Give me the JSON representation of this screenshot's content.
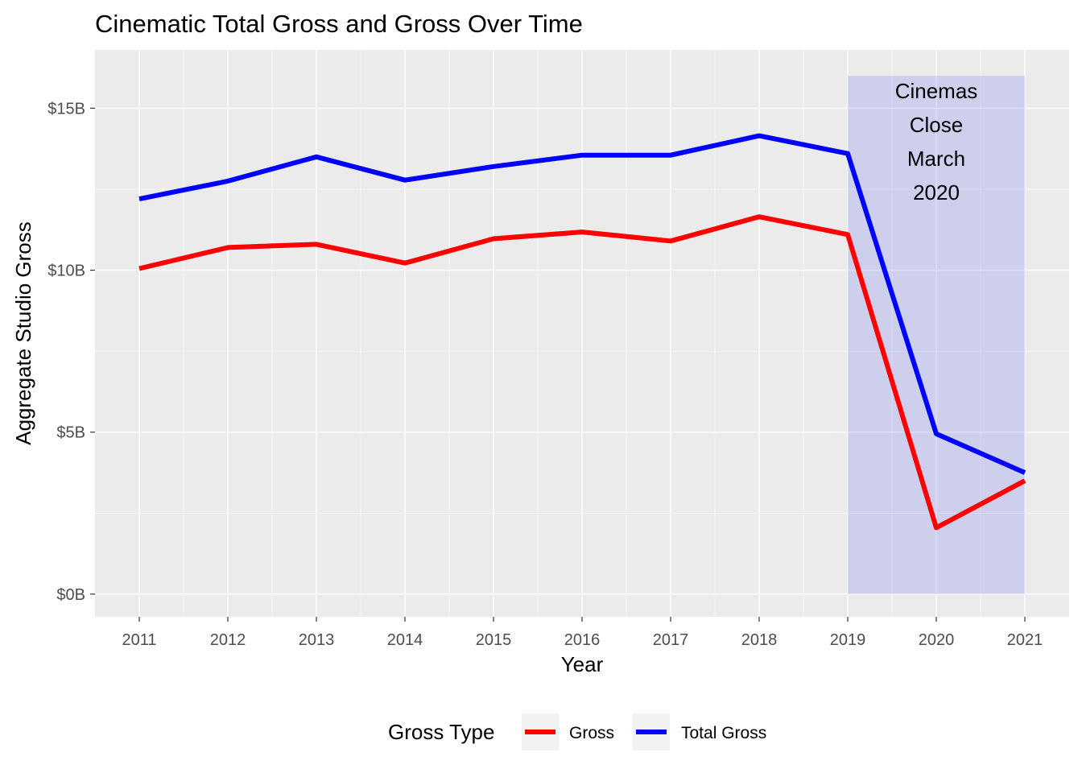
{
  "chart_data": {
    "type": "line",
    "title": "Cinematic Total Gross and Gross Over Time",
    "xlabel": "Year",
    "ylabel": "Aggregate Studio Gross",
    "x": [
      2011,
      2012,
      2013,
      2014,
      2015,
      2016,
      2017,
      2018,
      2019,
      2020,
      2021
    ],
    "x_ticks": [
      "2011",
      "2012",
      "2013",
      "2014",
      "2015",
      "2016",
      "2017",
      "2018",
      "2019",
      "2020",
      "2021"
    ],
    "y_ticks": [
      {
        "value": 0,
        "label": "$0B"
      },
      {
        "value": 5,
        "label": "$5B"
      },
      {
        "value": 10,
        "label": "$10B"
      },
      {
        "value": 15,
        "label": "$15B"
      }
    ],
    "y_units": "billions USD",
    "xlim": [
      2010.5,
      2021.5
    ],
    "ylim": [
      -0.7,
      16.8
    ],
    "series": [
      {
        "name": "Gross",
        "color": "#ff0000",
        "values": [
          10.05,
          10.7,
          10.8,
          10.22,
          10.97,
          11.18,
          10.9,
          11.65,
          11.1,
          2.05,
          3.5
        ]
      },
      {
        "name": "Total Gross",
        "color": "#0000ff",
        "values": [
          12.2,
          12.75,
          13.5,
          12.78,
          13.2,
          13.55,
          13.55,
          14.15,
          13.6,
          4.95,
          3.75
        ]
      }
    ],
    "highlight_region": {
      "x_start": 2019,
      "x_end": 2021,
      "y_start": 0,
      "y_end": 16,
      "color": "#0000ff",
      "opacity": 0.12
    },
    "annotation": {
      "lines": [
        "Cinemas",
        "Close",
        "March",
        "2020"
      ]
    },
    "legend": {
      "title": "Gross Type",
      "position": "bottom",
      "entries": [
        "Gross",
        "Total Gross"
      ]
    },
    "grid": true,
    "panel_background": "#ebebeb",
    "grid_color": "#ffffff"
  }
}
